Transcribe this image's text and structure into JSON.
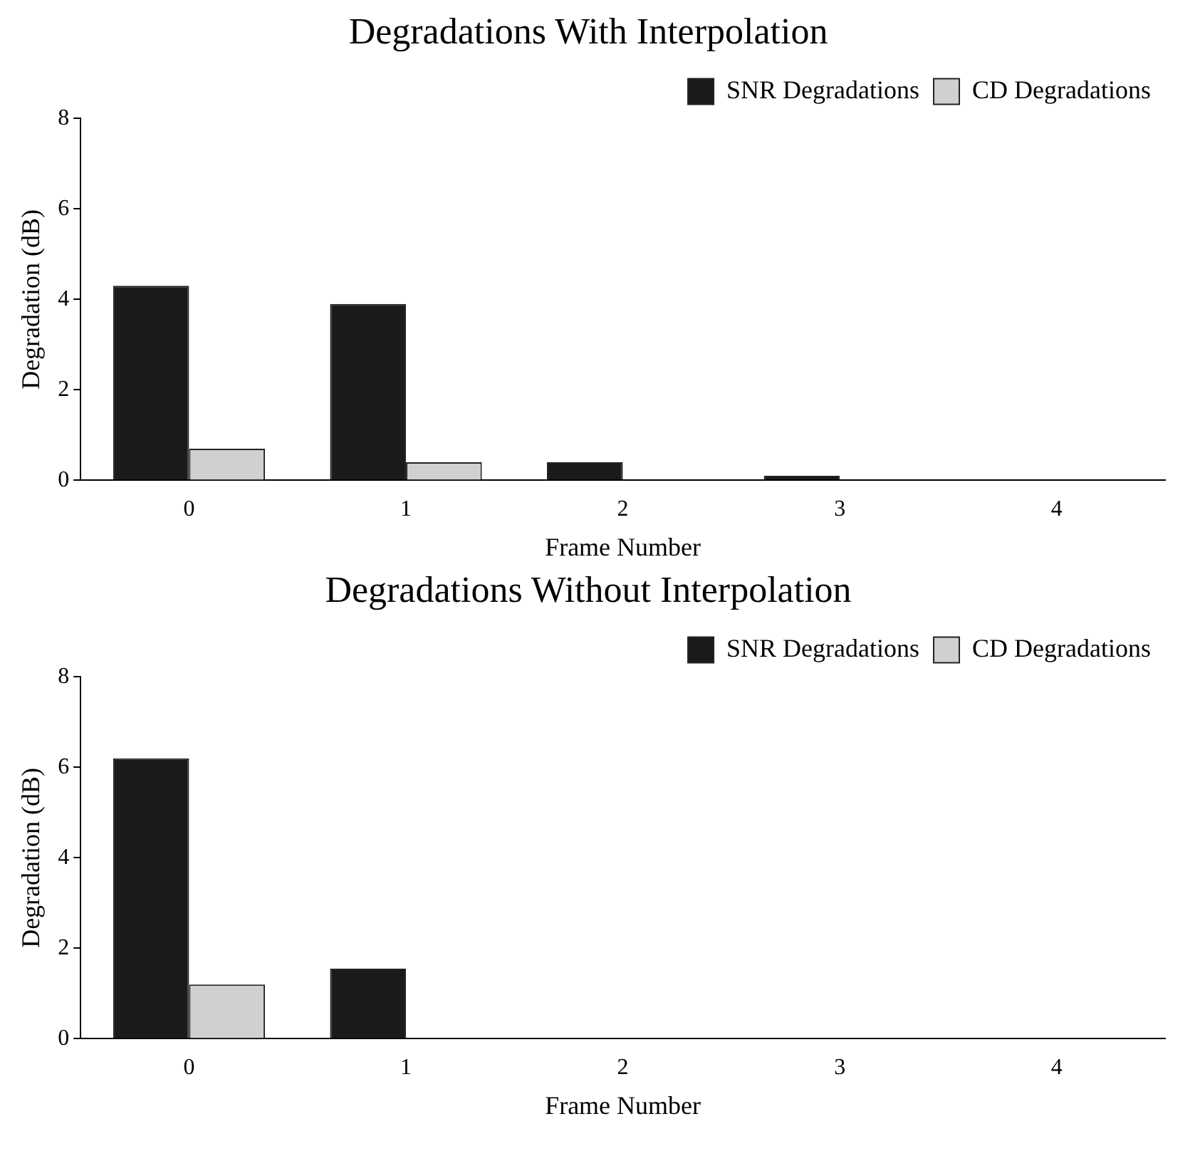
{
  "chart_data": [
    {
      "type": "bar",
      "title": "Degradations With Interpolation",
      "xlabel": "Frame Number",
      "ylabel": "Degradation (dB)",
      "categories": [
        "0",
        "1",
        "2",
        "3",
        "4"
      ],
      "series": [
        {
          "name": "SNR Degradations",
          "color": "#1a1a1a",
          "values": [
            4.3,
            3.9,
            0.4,
            0.1,
            0.02
          ]
        },
        {
          "name": "CD Degradations",
          "color": "#d0d0d0",
          "values": [
            0.7,
            0.4,
            null,
            0,
            0
          ]
        }
      ],
      "ylim": [
        0,
        8
      ],
      "yticks": [
        0,
        2,
        4,
        6,
        8
      ],
      "grid": false,
      "legend": "top right"
    },
    {
      "type": "bar",
      "title": "Degradations Without Interpolation",
      "xlabel": "Frame Number",
      "ylabel": "Degradation (dB)",
      "categories": [
        "0",
        "1",
        "2",
        "3",
        "4"
      ],
      "series": [
        {
          "name": "SNR Degradations",
          "color": "#1a1a1a",
          "values": [
            6.2,
            1.55,
            0.02,
            0.01,
            0
          ]
        },
        {
          "name": "CD Degradations",
          "color": "#d0d0d0",
          "values": [
            1.2,
            null,
            0,
            0,
            0
          ]
        }
      ],
      "ylim": [
        0,
        8
      ],
      "yticks": [
        0,
        2,
        4,
        6,
        8
      ],
      "grid": false,
      "legend": "top right"
    }
  ]
}
